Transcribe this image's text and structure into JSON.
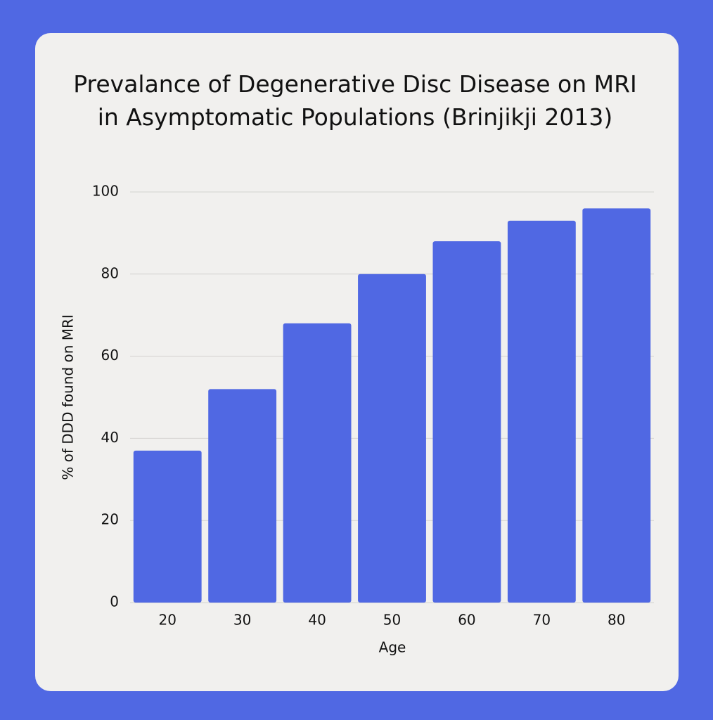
{
  "chart_data": {
    "type": "bar",
    "title": "Prevalance of Degenerative Disc Disease on MRI in Asymptomatic Populations (Brinjikji 2013)",
    "x_label": "Age",
    "y_label": "% of DDD found on MRI",
    "categories": [
      "20",
      "30",
      "40",
      "50",
      "60",
      "70",
      "80"
    ],
    "values": [
      37,
      52,
      68,
      80,
      88,
      93,
      96
    ],
    "color": "#5068e3",
    "ylim": [
      0,
      100
    ],
    "yticks": [
      0,
      20,
      40,
      60,
      80,
      100
    ],
    "grid": true
  }
}
